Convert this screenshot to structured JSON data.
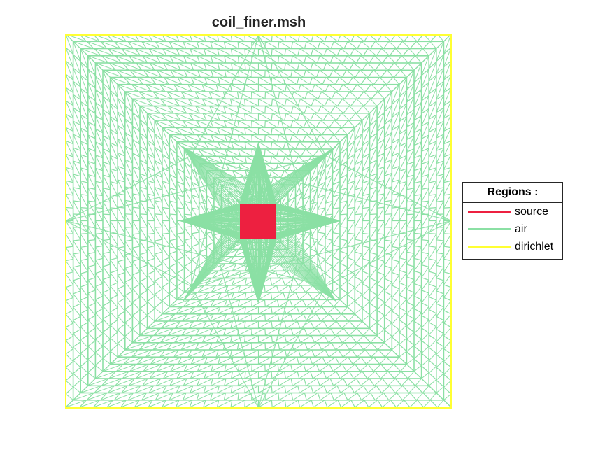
{
  "figure": {
    "title": "coil_finer.msh"
  },
  "colors": {
    "source": "#ed2040",
    "air": "#8be0a4",
    "dirichlet": "#ffff33",
    "mesh_dark": "#5fcf89",
    "background": "#ffffff"
  },
  "legend": {
    "title": "Regions :",
    "entries": [
      {
        "label": "source",
        "color": "#ed2040"
      },
      {
        "label": "air",
        "color": "#8be0a4"
      },
      {
        "label": "dirichlet",
        "color": "#ffff33"
      }
    ]
  }
}
